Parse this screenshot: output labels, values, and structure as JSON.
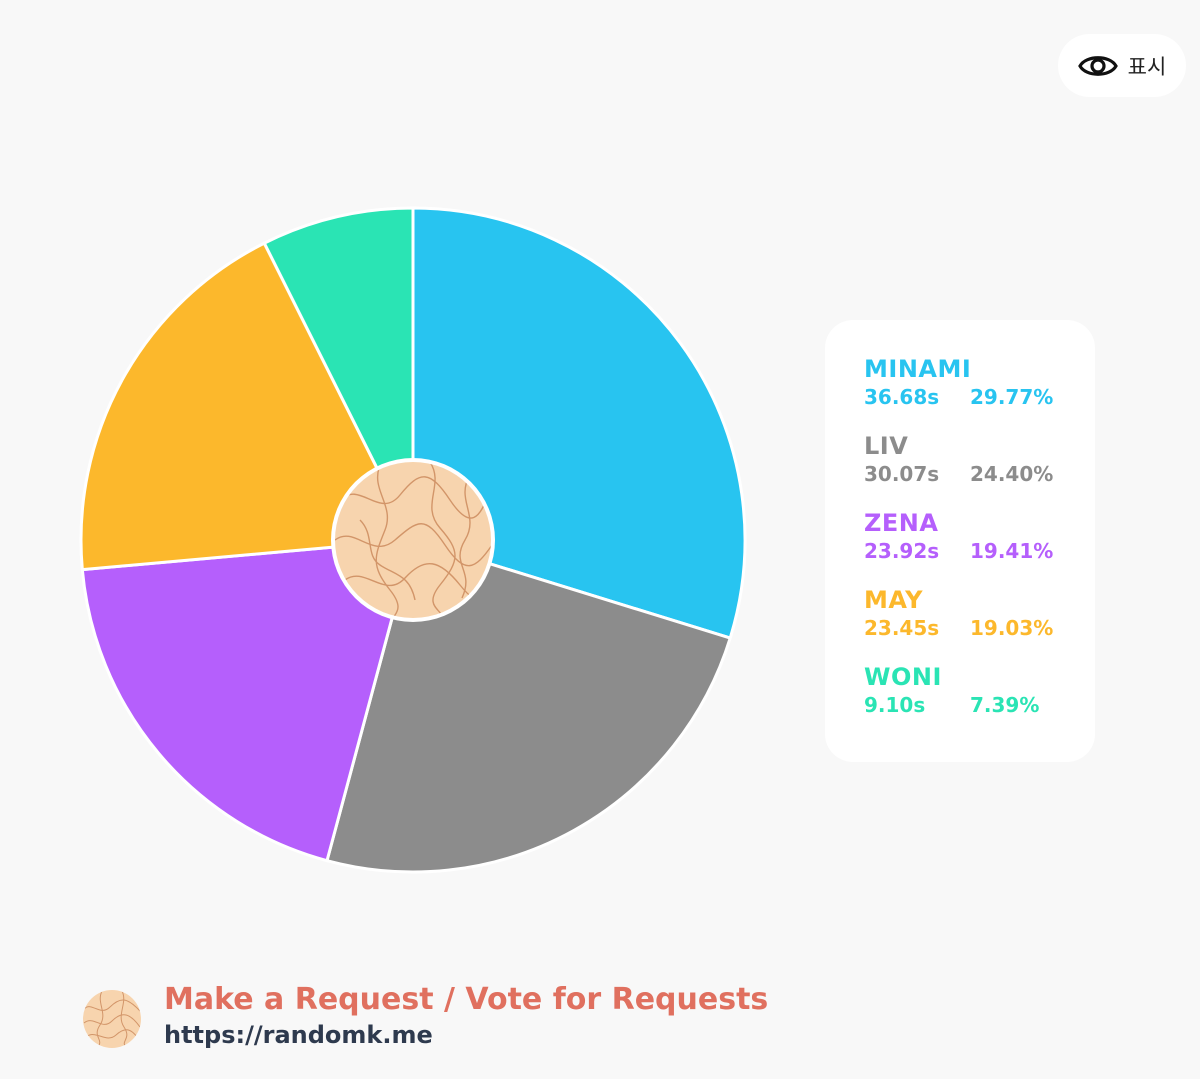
{
  "toolbar": {
    "show_label": "표시",
    "show_icon": "eye-icon"
  },
  "chart_data": {
    "type": "pie",
    "labels": [
      "MINAMI",
      "LIV",
      "ZENA",
      "MAY",
      "WONI"
    ],
    "times": [
      "36.68s",
      "30.07s",
      "23.92s",
      "23.45s",
      "9.10s"
    ],
    "percents": [
      "29.77%",
      "24.40%",
      "19.41%",
      "19.03%",
      "7.39%"
    ],
    "values": [
      29.77,
      24.4,
      19.41,
      19.03,
      7.39
    ],
    "colors": [
      "#28c4f0",
      "#8c8c8c",
      "#b55ffc",
      "#fcb82c",
      "#2ae4b4"
    ],
    "center_icon": "randomk-logo",
    "legend_position": "right"
  },
  "footer": {
    "line1": "Make a Request / Vote for Requests",
    "url": "https://randomk.me",
    "logo_icon": "randomk-logo"
  }
}
